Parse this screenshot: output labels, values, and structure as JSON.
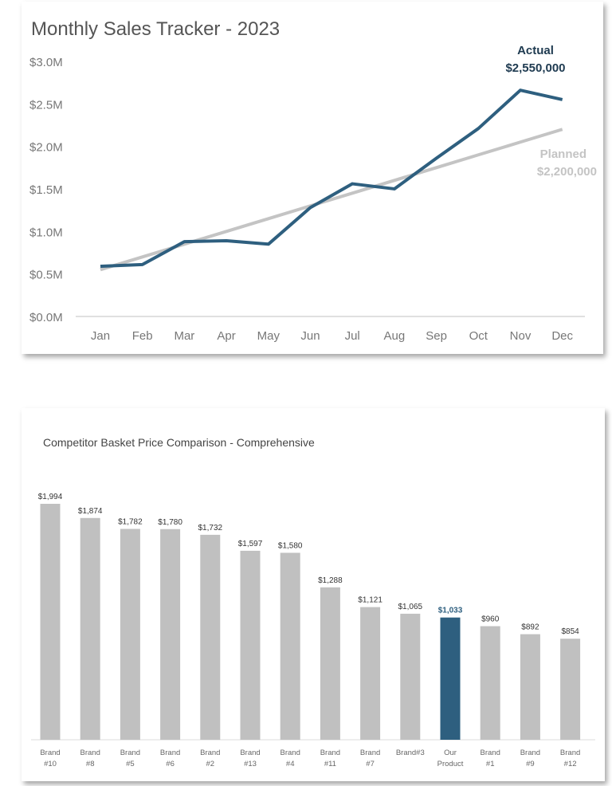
{
  "chart_data": [
    {
      "type": "line",
      "title": "Monthly Sales Tracker - 2023",
      "categories": [
        "Jan",
        "Feb",
        "Mar",
        "Apr",
        "May",
        "Jun",
        "Jul",
        "Aug",
        "Sep",
        "Oct",
        "Nov",
        "Dec"
      ],
      "yticks": [
        "$0.0M",
        "$0.5M",
        "$1.0M",
        "$1.5M",
        "$2.0M",
        "$2.5M",
        "$3.0M"
      ],
      "ylim": [
        0,
        3000000
      ],
      "grid": false,
      "series": [
        {
          "name": "Actual",
          "label": "$2,550,000",
          "color": "#2e5f7f",
          "values": [
            590000,
            610000,
            880000,
            890000,
            850000,
            1280000,
            1560000,
            1500000,
            1860000,
            2210000,
            2660000,
            2550000
          ]
        },
        {
          "name": "Planned",
          "label": "$2,200,000",
          "color": "#c4c4c4",
          "values": [
            550000,
            700000,
            850000,
            1000000,
            1150000,
            1300000,
            1450000,
            1600000,
            1750000,
            1900000,
            2050000,
            2200000
          ]
        }
      ]
    },
    {
      "type": "bar",
      "title": "Competitor Basket Price Comparison - Comprehensive",
      "categories": [
        [
          "Brand",
          "#10"
        ],
        [
          "Brand",
          "#8"
        ],
        [
          "Brand",
          "#5"
        ],
        [
          "Brand",
          "#6"
        ],
        [
          "Brand",
          "#2"
        ],
        [
          "Brand",
          "#13"
        ],
        [
          "Brand",
          "#4"
        ],
        [
          "Brand",
          "#11"
        ],
        [
          "Brand",
          "#7"
        ],
        [
          "Brand#3",
          ""
        ],
        [
          "Our",
          "Product"
        ],
        [
          "Brand",
          "#1"
        ],
        [
          "Brand",
          "#9"
        ],
        [
          "Brand",
          "#12"
        ]
      ],
      "values": [
        1994,
        1874,
        1782,
        1780,
        1732,
        1597,
        1580,
        1288,
        1121,
        1065,
        1033,
        960,
        892,
        854
      ],
      "data_labels": [
        "$1,994",
        "$1,874",
        "$1,782",
        "$1,780",
        "$1,732",
        "$1,597",
        "$1,580",
        "$1,288",
        "$1,121",
        "$1,065",
        "$1,033",
        "$960",
        "$892",
        "$854"
      ],
      "highlight_index": 10,
      "colors": {
        "default": "#c0c0c0",
        "highlight": "#2e5f7f"
      }
    }
  ]
}
